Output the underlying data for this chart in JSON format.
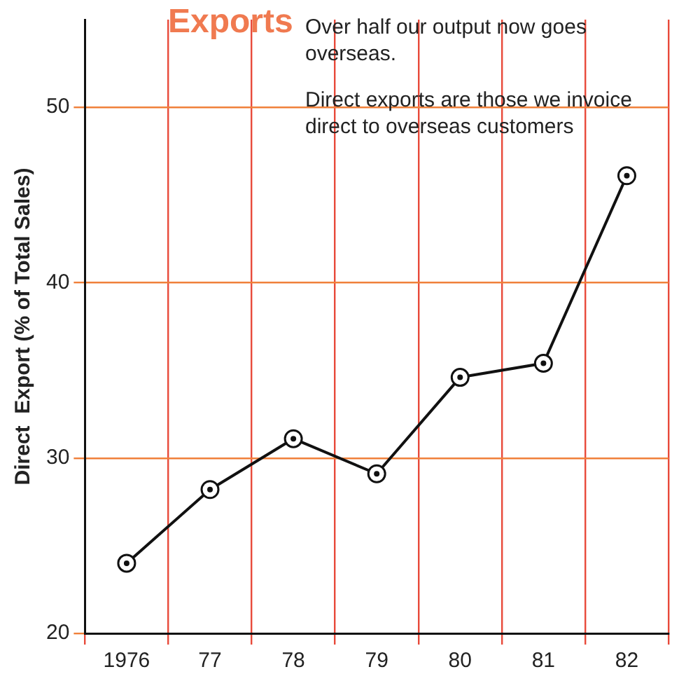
{
  "chart_data": {
    "type": "line",
    "title": "Exports",
    "subtitle": "Over half our output now goes overseas.",
    "annotations": [
      "Direct exports are those we invoice direct to overseas customers"
    ],
    "ylabel": "Direct  Export (% of Total Sales)",
    "categories": [
      "1976",
      "77",
      "78",
      "79",
      "80",
      "81",
      "82"
    ],
    "series": [
      {
        "color": "#111111",
        "values": [
          24.0,
          28.2,
          31.1,
          29.1,
          34.6,
          35.4,
          46.1
        ]
      }
    ],
    "ylim": [
      20,
      55
    ],
    "yticks": [
      20,
      30,
      40,
      50
    ],
    "grid": true,
    "marker": "circle",
    "line_style": "solid",
    "legend": false
  }
}
